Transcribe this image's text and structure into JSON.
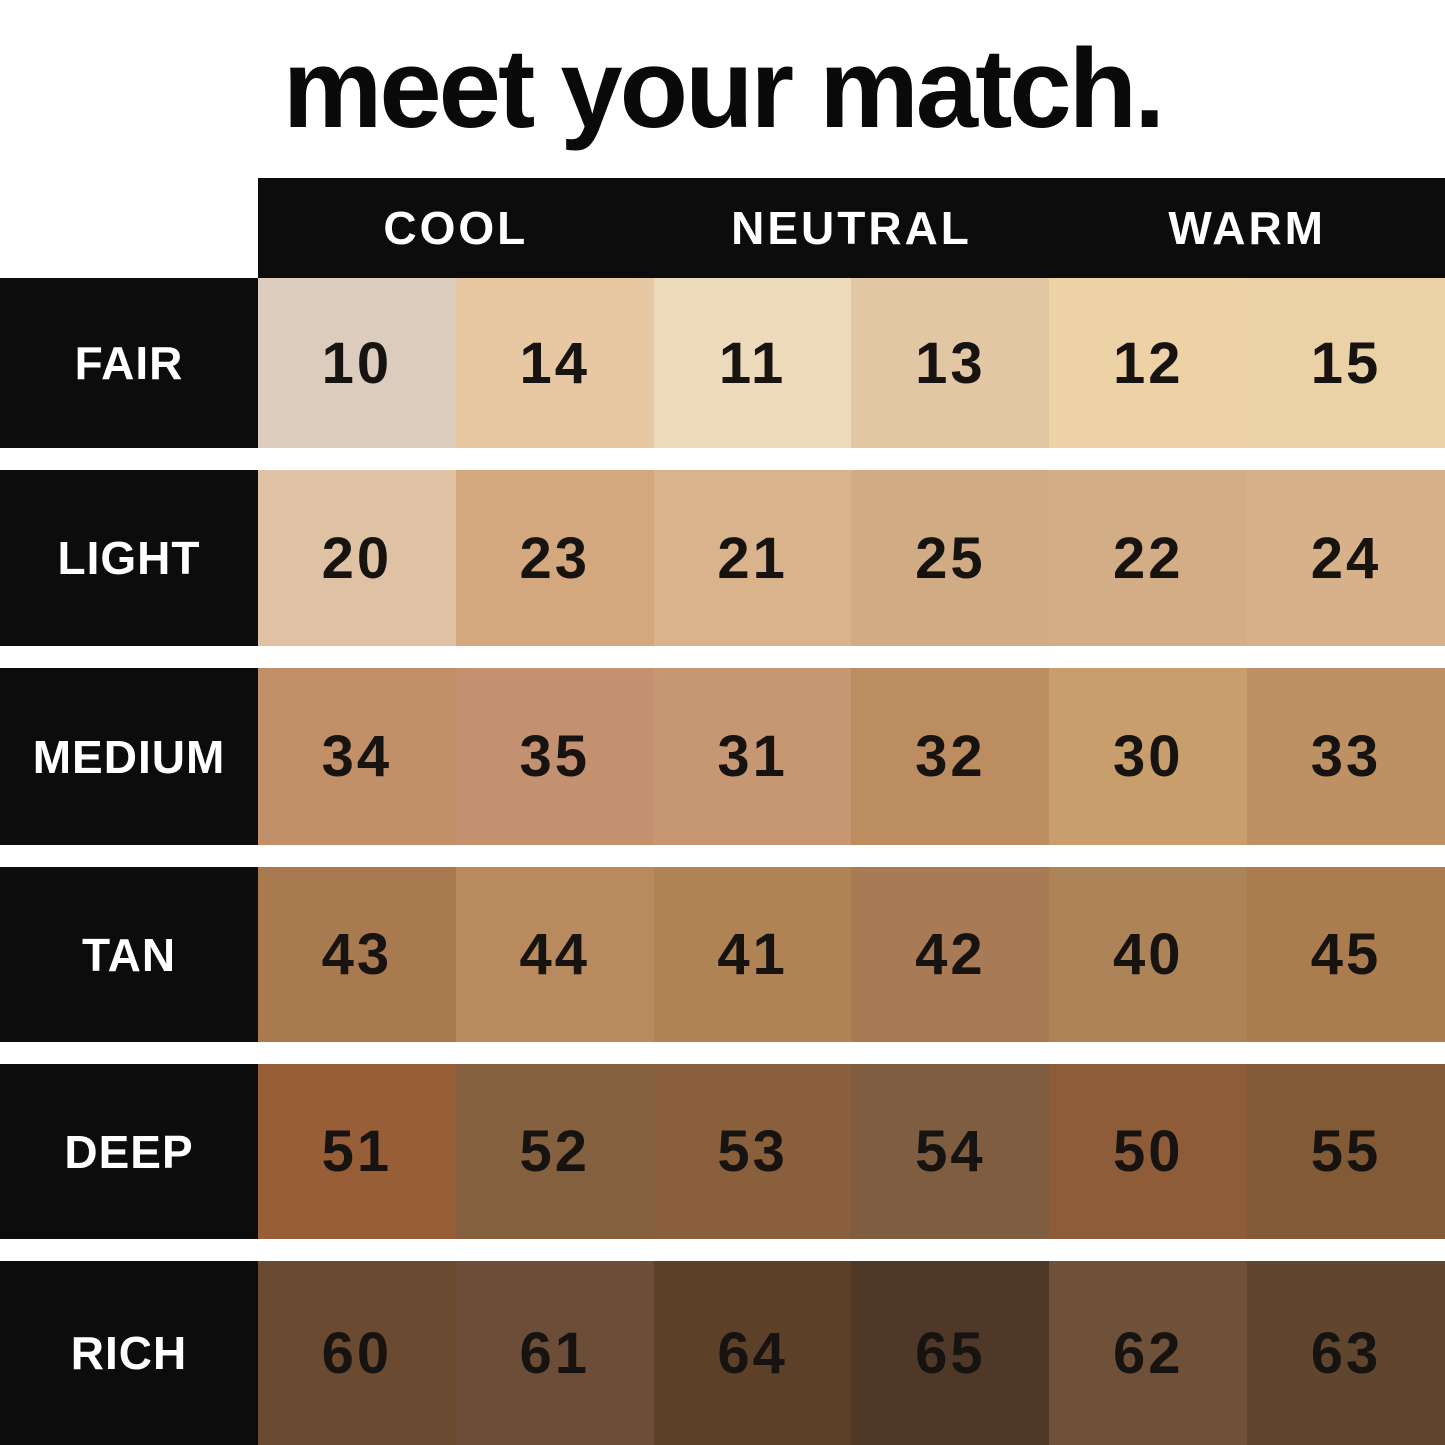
{
  "title": "meet your match.",
  "undertones": [
    "COOL",
    "NEUTRAL",
    "WARM"
  ],
  "palette": {
    "background": "#ffffff",
    "bar_black": "#0c0c0c",
    "label_text": "#ffffff",
    "number_text": "#171310"
  },
  "rows": [
    {
      "label": "FAIR",
      "shades": [
        {
          "num": "10",
          "color": "#dbccbd"
        },
        {
          "num": "14",
          "color": "#e7c8a3"
        },
        {
          "num": "11",
          "color": "#ecdaba"
        },
        {
          "num": "13",
          "color": "#e2c7a4"
        },
        {
          "num": "12",
          "color": "#ecd2a5"
        },
        {
          "num": "15",
          "color": "#ebd1a6"
        }
      ]
    },
    {
      "label": "LIGHT",
      "shades": [
        {
          "num": "20",
          "color": "#dfc2a3"
        },
        {
          "num": "23",
          "color": "#d3a87e"
        },
        {
          "num": "21",
          "color": "#d8b38b"
        },
        {
          "num": "25",
          "color": "#d1ab83"
        },
        {
          "num": "22",
          "color": "#d3ad85"
        },
        {
          "num": "24",
          "color": "#d6b189"
        }
      ]
    },
    {
      "label": "MEDIUM",
      "shades": [
        {
          "num": "34",
          "color": "#c18f68"
        },
        {
          "num": "35",
          "color": "#c49170"
        },
        {
          "num": "31",
          "color": "#c79774"
        },
        {
          "num": "32",
          "color": "#bd8d62"
        },
        {
          "num": "30",
          "color": "#c89e6c"
        },
        {
          "num": "33",
          "color": "#bd9164"
        }
      ]
    },
    {
      "label": "TAN",
      "shades": [
        {
          "num": "43",
          "color": "#a97a4f"
        },
        {
          "num": "44",
          "color": "#b98a5e"
        },
        {
          "num": "41",
          "color": "#b08355"
        },
        {
          "num": "42",
          "color": "#a87a55"
        },
        {
          "num": "40",
          "color": "#ad8458"
        },
        {
          "num": "45",
          "color": "#aa7c4e"
        }
      ]
    },
    {
      "label": "DEEP",
      "shades": [
        {
          "num": "51",
          "color": "#985e38"
        },
        {
          "num": "52",
          "color": "#84603f"
        },
        {
          "num": "53",
          "color": "#8a5f3c"
        },
        {
          "num": "54",
          "color": "#7e5d41"
        },
        {
          "num": "50",
          "color": "#8e5c39"
        },
        {
          "num": "55",
          "color": "#825a35"
        }
      ]
    },
    {
      "label": "RICH",
      "shades": [
        {
          "num": "60",
          "color": "#6a4a30"
        },
        {
          "num": "61",
          "color": "#6c4d37"
        },
        {
          "num": "64",
          "color": "#5c4128"
        },
        {
          "num": "65",
          "color": "#4f3828"
        },
        {
          "num": "62",
          "color": "#6f5038"
        },
        {
          "num": "63",
          "color": "#60452f"
        }
      ]
    }
  ],
  "chart_data": {
    "type": "table",
    "title": "meet your match.",
    "column_groups": [
      "COOL",
      "NEUTRAL",
      "WARM"
    ],
    "columns_undertone_order": [
      "COOL",
      "COOL",
      "NEUTRAL",
      "NEUTRAL",
      "WARM",
      "WARM"
    ],
    "row_categories": [
      "FAIR",
      "LIGHT",
      "MEDIUM",
      "TAN",
      "DEEP",
      "RICH"
    ],
    "cells": [
      {
        "row": "FAIR",
        "shade_numbers": [
          10,
          14,
          11,
          13,
          12,
          15
        ],
        "swatch_colors": [
          "#dbccbd",
          "#e7c8a3",
          "#ecdaba",
          "#e2c7a4",
          "#ecd2a5",
          "#ebd1a6"
        ]
      },
      {
        "row": "LIGHT",
        "shade_numbers": [
          20,
          23,
          21,
          25,
          22,
          24
        ],
        "swatch_colors": [
          "#dfc2a3",
          "#d3a87e",
          "#d8b38b",
          "#d1ab83",
          "#d3ad85",
          "#d6b189"
        ]
      },
      {
        "row": "MEDIUM",
        "shade_numbers": [
          34,
          35,
          31,
          32,
          30,
          33
        ],
        "swatch_colors": [
          "#c18f68",
          "#c49170",
          "#c79774",
          "#bd8d62",
          "#c89e6c",
          "#bd9164"
        ]
      },
      {
        "row": "TAN",
        "shade_numbers": [
          43,
          44,
          41,
          42,
          40,
          45
        ],
        "swatch_colors": [
          "#a97a4f",
          "#b98a5e",
          "#b08355",
          "#a87a55",
          "#ad8458",
          "#aa7c4e"
        ]
      },
      {
        "row": "DEEP",
        "shade_numbers": [
          51,
          52,
          53,
          54,
          50,
          55
        ],
        "swatch_colors": [
          "#985e38",
          "#84603f",
          "#8a5f3c",
          "#7e5d41",
          "#8e5c39",
          "#825a35"
        ]
      },
      {
        "row": "RICH",
        "shade_numbers": [
          60,
          61,
          64,
          65,
          62,
          63
        ],
        "swatch_colors": [
          "#6a4a30",
          "#6c4d37",
          "#5c4128",
          "#4f3828",
          "#6f5038",
          "#60452f"
        ]
      }
    ],
    "legend_position": "top",
    "grid": false
  }
}
